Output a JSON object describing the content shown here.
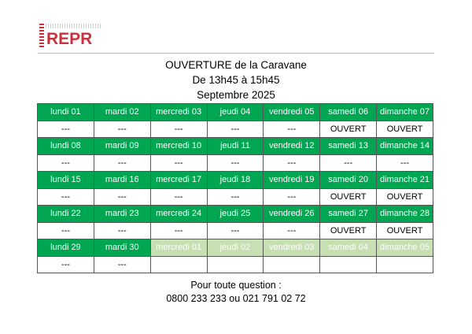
{
  "logo": {
    "text": "REPR",
    "color": "#c8323c"
  },
  "title": {
    "line1": "OUVERTURE de la Caravane",
    "line2": "De 13h45 à 15h45",
    "line3": "Septembre 2025"
  },
  "colors": {
    "header": "#00a651",
    "next_month_header": "#c6e0b4"
  },
  "weeks": [
    {
      "days": [
        "lundi 01",
        "mardi 02",
        "mercredi 03",
        "jeudi 04",
        "vendredi 05",
        "samedi 06",
        "dimanche 07"
      ],
      "status": [
        "---",
        "---",
        "---",
        "---",
        "---",
        "OUVERT",
        "OUVERT"
      ]
    },
    {
      "days": [
        "lundi 08",
        "mardi 09",
        "mercredi 10",
        "jeudi 11",
        "vendredi 12",
        "samedi 13",
        "dimanche 14"
      ],
      "status": [
        "---",
        "---",
        "---",
        "---",
        "---",
        "---",
        "---"
      ]
    },
    {
      "days": [
        "lundi 15",
        "mardi 16",
        "mercredi 17",
        "jeudi 18",
        "vendredi 19",
        "samedi 20",
        "dimanche 21"
      ],
      "status": [
        "---",
        "---",
        "---",
        "---",
        "---",
        "OUVERT",
        "OUVERT"
      ]
    },
    {
      "days": [
        "lundi 22",
        "mardi 23",
        "mercredi 24",
        "jeudi 25",
        "vendredi 26",
        "samedi 27",
        "dimanche 28"
      ],
      "status": [
        "---",
        "---",
        "---",
        "---",
        "---",
        "OUVERT",
        "OUVERT"
      ]
    },
    {
      "days": [
        "lundi 29",
        "mardi 30",
        "mercredi 01",
        "jeudi 02",
        "vendredi 03",
        "samedi 04",
        "dimanche 05"
      ],
      "status": [
        "---",
        "---",
        "",
        "",
        "",
        "",
        ""
      ],
      "next_month_from": 2
    }
  ],
  "footer": {
    "line1": "Pour toute question :",
    "line2": "0800 233 233 ou 021 791 02 72"
  }
}
